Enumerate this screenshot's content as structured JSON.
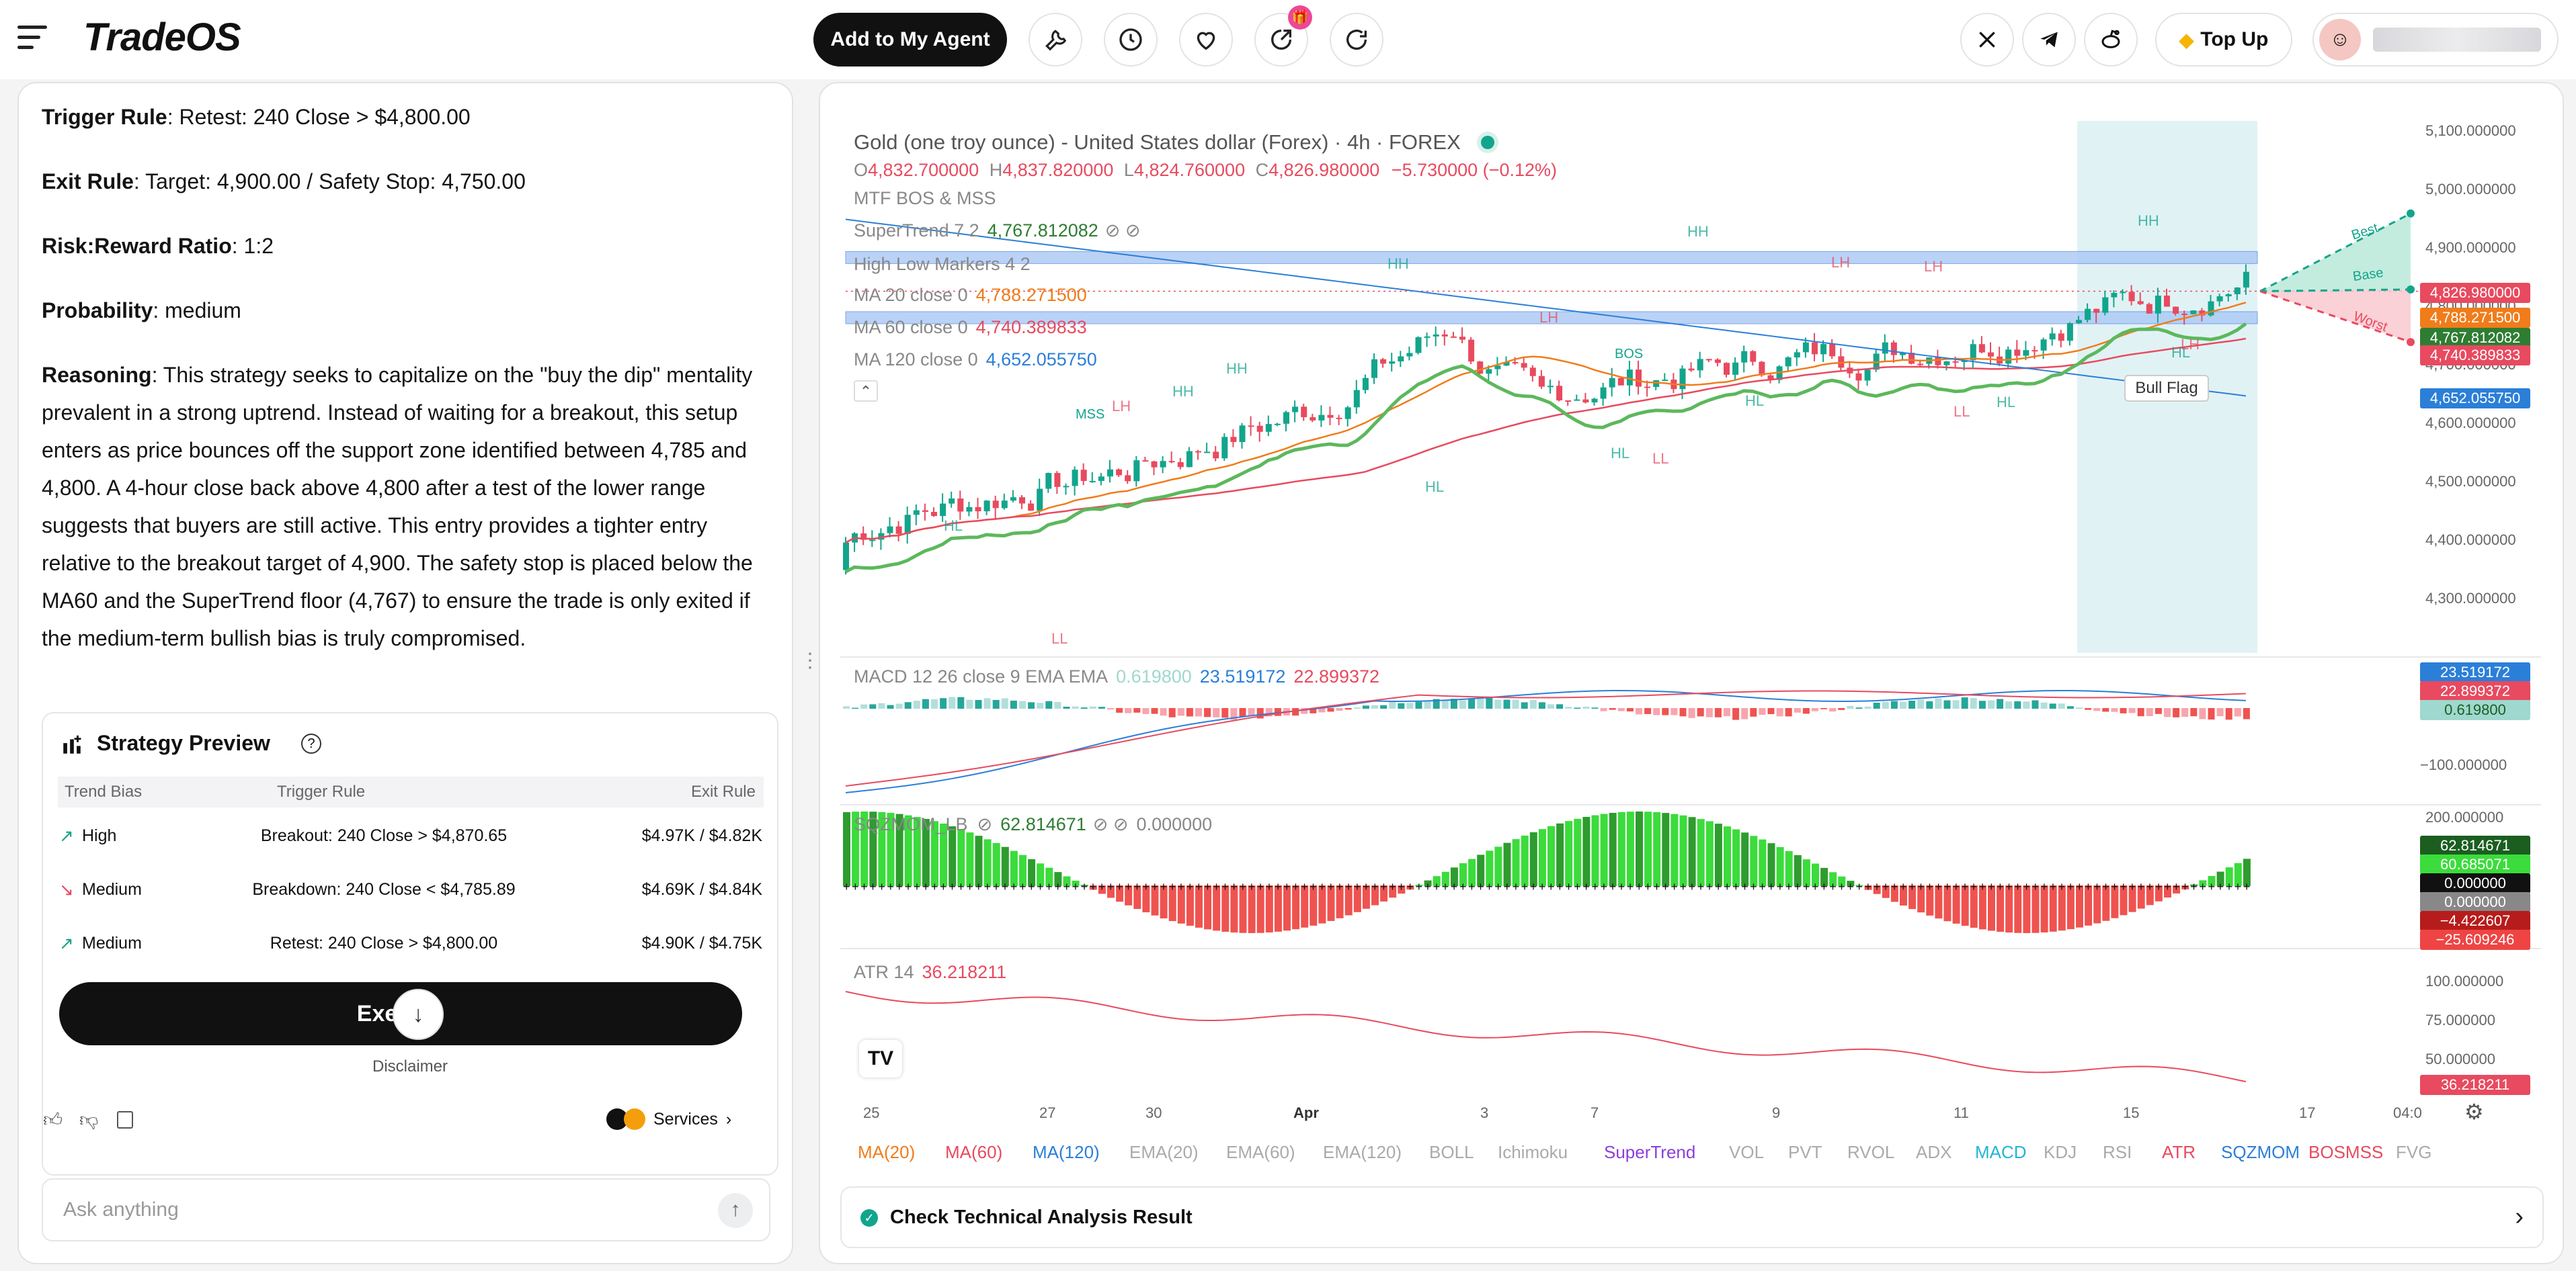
{
  "header": {
    "brand": "TradeOS",
    "add_agent": "Add to My Agent",
    "gift_badge": "🎁",
    "top_up": "Top Up",
    "username": "██████████"
  },
  "left": {
    "trigger_label": "Trigger Rule",
    "trigger_text": ": Retest: 240 Close > $4,800.00",
    "exit_label": "Exit Rule",
    "exit_text": ": Target: 4,900.00 / Safety Stop: 4,750.00",
    "rr_label": "Risk:Reward Ratio",
    "rr_text": ": 1:2",
    "prob_label": "Probability",
    "prob_text": ": medium",
    "reason_label": "Reasoning",
    "reason_text": ": This strategy seeks to capitalize on the \"buy the dip\" mentality prevalent in a strong uptrend. Instead of waiting for a breakout, this setup enters as price bounces off the support zone identified between 4,785 and 4,800. A 4-hour close back above 4,800 after a test of the lower range suggests that buyers are still active. This entry provides a tighter entry relative to the breakout target of 4,900. The safety stop is placed below the MA60 and the SuperTrend floor (4,767) to ensure the trade is only exited if the medium-term bullish bias is truly compromised.",
    "preview_title": "Strategy Preview",
    "headers": [
      "Trend Bias",
      "Trigger Rule",
      "Exit Rule"
    ],
    "rows": [
      {
        "bias": "High",
        "trigger": "Breakout: 240 Close > $4,870.65",
        "exit": "$4.97K / $4.82K",
        "dir": "up"
      },
      {
        "bias": "Medium",
        "trigger": "Breakdown: 240 Close < $4,785.89",
        "exit": "$4.69K / $4.84K",
        "dir": "down"
      },
      {
        "bias": "Medium",
        "trigger": "Retest: 240 Close > $4,800.00",
        "exit": "$4.90K / $4.75K",
        "dir": "up"
      }
    ],
    "execute": "Execute",
    "disclaimer": "Disclaimer",
    "services": "Services",
    "ask_placeholder": "Ask anything"
  },
  "chart": {
    "title": "Gold (one troy ounce) - United States dollar (Forex) · 4h · FOREX",
    "ohlc": {
      "o": "4,832.700000",
      "h": "4,837.820000",
      "l": "4,824.760000",
      "c": "4,826.980000",
      "chg": "−5.730000 (−0.12%)"
    },
    "ind1": "MTF BOS & MSS",
    "st_label": "SuperTrend 7 2",
    "st_val": "4,767.812082",
    "hl_label": "High Low Markers 4 2",
    "ma20_label": "MA 20 close 0",
    "ma20_val": "4,788.271500",
    "ma60_label": "MA 60 close 0",
    "ma60_val": "4,740.389833",
    "ma120_label": "MA 120 close 0",
    "ma120_val": "4,652.055750",
    "price_axis": [
      "5,100.000000",
      "5,000.000000",
      "4,900.000000",
      "4,800.000000",
      "4,700.000000",
      "4,600.000000",
      "4,500.000000",
      "4,400.000000",
      "4,300.000000"
    ],
    "price_tags": [
      {
        "v": "4,826.980000",
        "c": "#e84a5f"
      },
      {
        "v": "4,788.271500",
        "c": "#f07c1b"
      },
      {
        "v": "4,767.812082",
        "c": "#2e7d32"
      },
      {
        "v": "4,740.389833",
        "c": "#e84a5f"
      },
      {
        "v": "4,652.055750",
        "c": "#2b7fd8"
      }
    ],
    "proj": {
      "best": "Best",
      "base": "Base",
      "worst": "Worst"
    },
    "annotations": {
      "bull_flag": "Bull Flag",
      "bos": "BOS",
      "mss": "MSS"
    },
    "macd_label": "MACD 12 26 close 9 EMA EMA",
    "macd_vals": [
      "0.619800",
      "23.519172",
      "22.899372"
    ],
    "macd_axis": "−100.000000",
    "macd_tags": [
      {
        "v": "23.519172",
        "c": "#2b7fd8"
      },
      {
        "v": "22.899372",
        "c": "#e84a5f"
      },
      {
        "v": "0.619800",
        "c": "#9ed8cf"
      }
    ],
    "sqz_label": "SQZMOM_LB",
    "sqz_val": "62.814671",
    "sqz_val2": "0.000000",
    "sqz_axis": "200.000000",
    "sqz_tags": [
      {
        "v": "62.814671",
        "c": "#1b5e20"
      },
      {
        "v": "60.685071",
        "c": "#3bdc3b"
      },
      {
        "v": "0.000000",
        "c": "#111"
      },
      {
        "v": "0.000000",
        "c": "#888"
      },
      {
        "v": "−4.422607",
        "c": "#b71c1c"
      },
      {
        "v": "−25.609246",
        "c": "#ef4444"
      }
    ],
    "atr_label": "ATR 14",
    "atr_val": "36.218211",
    "atr_axis": [
      "100.000000",
      "75.000000",
      "50.000000"
    ],
    "atr_tag": "36.218211",
    "dates": [
      "25",
      "27",
      "30",
      "Apr",
      "3",
      "7",
      "9",
      "11",
      "15",
      "17",
      "04:0"
    ],
    "markers": [
      "HH",
      "HH",
      "HH",
      "HH",
      "HH",
      "LH",
      "LH",
      "LH",
      "LH",
      "HL",
      "HL",
      "HL",
      "HL",
      "HL",
      "LL",
      "LL",
      "LL",
      "HL",
      "LH"
    ],
    "indicators": [
      {
        "n": "MA(20)",
        "c": "#f07c1b"
      },
      {
        "n": "MA(60)",
        "c": "#e84a5f"
      },
      {
        "n": "MA(120)",
        "c": "#2b7fd8"
      },
      {
        "n": "EMA(20)",
        "c": "#aaa"
      },
      {
        "n": "EMA(60)",
        "c": "#aaa"
      },
      {
        "n": "EMA(120)",
        "c": "#aaa"
      },
      {
        "n": "BOLL",
        "c": "#aaa"
      },
      {
        "n": "Ichimoku",
        "c": "#aaa"
      },
      {
        "n": "SuperTrend",
        "c": "#8b3fd9"
      },
      {
        "n": "VOL",
        "c": "#aaa"
      },
      {
        "n": "PVT",
        "c": "#aaa"
      },
      {
        "n": "RVOL",
        "c": "#aaa"
      },
      {
        "n": "ADX",
        "c": "#aaa"
      },
      {
        "n": "MACD",
        "c": "#1fb6d6"
      },
      {
        "n": "KDJ",
        "c": "#aaa"
      },
      {
        "n": "RSI",
        "c": "#aaa"
      },
      {
        "n": "ATR",
        "c": "#e84a5f"
      },
      {
        "n": "SQZMOM",
        "c": "#2b7fd8"
      },
      {
        "n": "BOSMSS",
        "c": "#e84a5f"
      },
      {
        "n": "FVG",
        "c": "#aaa"
      }
    ],
    "check_result": "Check Technical Analysis Result"
  }
}
